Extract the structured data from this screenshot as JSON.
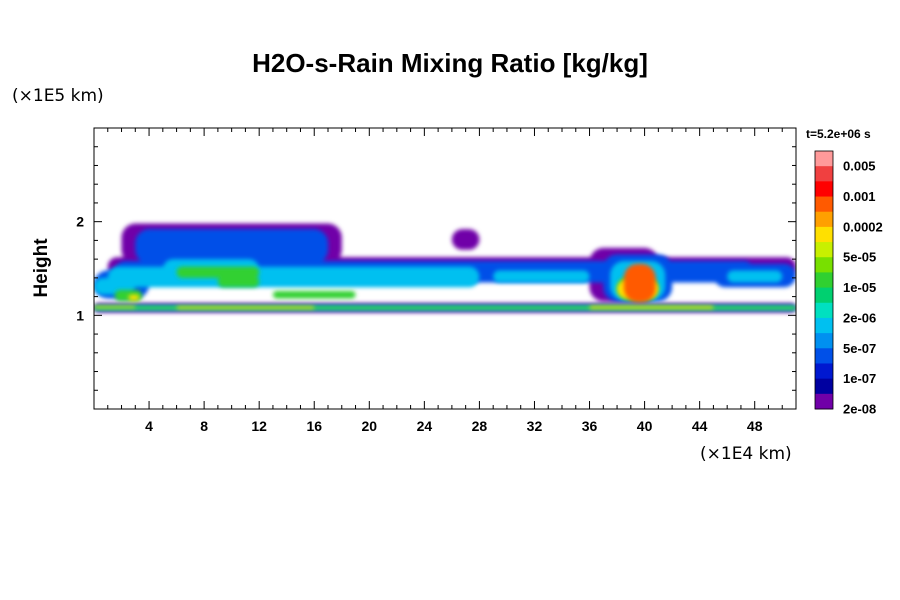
{
  "chart_data": {
    "type": "heatmap",
    "title": "H2O-s-Rain Mixing Ratio [kg/kg]",
    "ylabel": "Height",
    "yunit": "(×1E5 km)",
    "xunit": "(×1E4 km)",
    "time_label": "t=5.2e+06 s",
    "xlim": [
      0,
      51
    ],
    "ylim": [
      0,
      3
    ],
    "x_ticks": [
      4,
      8,
      12,
      16,
      20,
      24,
      28,
      32,
      36,
      40,
      44,
      48
    ],
    "y_ticks": [
      1,
      2
    ],
    "colorbar": {
      "labels": [
        "0.005",
        "0.001",
        "0.0002",
        "5e-05",
        "1e-05",
        "2e-06",
        "5e-07",
        "1e-07",
        "2e-08"
      ],
      "colors": [
        "#ff9a9a",
        "#f04040",
        "#ff0000",
        "#ff5a00",
        "#ffa000",
        "#ffe000",
        "#c8f000",
        "#78e000",
        "#30d030",
        "#00d070",
        "#00e0c0",
        "#00c0f0",
        "#0090f0",
        "#0050e8",
        "#0018d0",
        "#0000a0",
        "#7000a8"
      ]
    },
    "layers": [
      {
        "level": 0,
        "color": "#7000a8",
        "blobs": [
          [
            1,
            51,
            1.42,
            1.62
          ],
          [
            2,
            18,
            1.55,
            1.98
          ],
          [
            26,
            28,
            1.7,
            1.92
          ],
          [
            36,
            41,
            1.15,
            1.72
          ],
          [
            0,
            51,
            1.03,
            1.13
          ]
        ]
      },
      {
        "level": 1,
        "color": "#0050e8",
        "blobs": [
          [
            1.5,
            48,
            1.35,
            1.58
          ],
          [
            3,
            17,
            1.55,
            1.92
          ],
          [
            0,
            4,
            1.18,
            1.48
          ],
          [
            10,
            15,
            1.35,
            1.68
          ],
          [
            37,
            42,
            1.15,
            1.65
          ],
          [
            45,
            51,
            1.3,
            1.55
          ]
        ]
      },
      {
        "level": 2,
        "color": "#00c0f0",
        "blobs": [
          [
            1,
            28,
            1.3,
            1.52
          ],
          [
            5,
            12,
            1.38,
            1.6
          ],
          [
            0,
            3,
            1.22,
            1.4
          ],
          [
            29,
            36,
            1.35,
            1.48
          ],
          [
            37.5,
            41.5,
            1.16,
            1.58
          ],
          [
            46,
            50,
            1.35,
            1.48
          ],
          [
            0,
            51,
            1.05,
            1.11
          ]
        ]
      },
      {
        "level": 3,
        "color": "#30d030",
        "blobs": [
          [
            6,
            12,
            1.4,
            1.52
          ],
          [
            9,
            12,
            1.3,
            1.42
          ],
          [
            13,
            19,
            1.18,
            1.26
          ],
          [
            1.5,
            3.5,
            1.15,
            1.27
          ],
          [
            38,
            41,
            1.16,
            1.42
          ],
          [
            0,
            51,
            1.06,
            1.1
          ]
        ]
      },
      {
        "level": 4,
        "color": "#ffe000",
        "blobs": [
          [
            0,
            3,
            1.08,
            1.1
          ],
          [
            6,
            16,
            1.07,
            1.095
          ],
          [
            36,
            45,
            1.07,
            1.1
          ],
          [
            2.5,
            3.3,
            1.16,
            1.22
          ],
          [
            38,
            41,
            1.18,
            1.38
          ]
        ]
      },
      {
        "level": 5,
        "color": "#ff5a00",
        "blobs": [
          [
            38.5,
            40.8,
            1.14,
            1.55
          ]
        ]
      }
    ]
  }
}
